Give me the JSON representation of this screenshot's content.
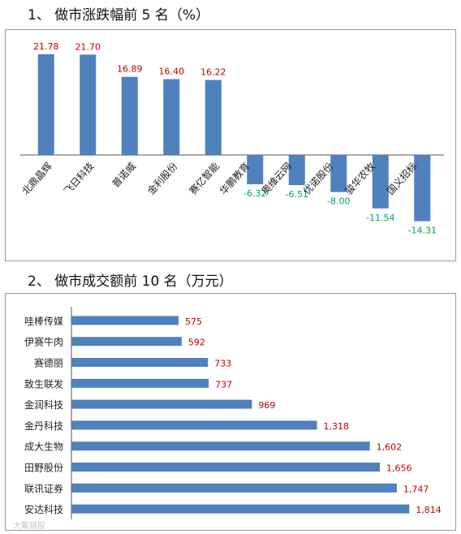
{
  "headings": {
    "chart1": "1、 做市涨跌幅前 5 名（%）",
    "chart2": "2、 做市成交额前 10 名（万元）"
  },
  "watermark": "大戴贼股",
  "colors": {
    "bar": "#4f81bd",
    "positive_label": "#c00000",
    "negative_label": "#00a651",
    "axis": "#555555"
  },
  "chart_data": [
    {
      "type": "bar",
      "title": "",
      "categories": [
        "北鼎晶辉",
        "飞日科技",
        "普诺威",
        "金利股份",
        "赛亿智能",
        "华鹏教育",
        "奥维云网",
        "优诺股份",
        "骏华农牧",
        "国义招标"
      ],
      "values": [
        21.78,
        21.7,
        16.89,
        16.4,
        16.22,
        -6.32,
        -6.51,
        -8.0,
        -11.54,
        -14.31
      ],
      "value_labels": [
        "21.78",
        "21.70",
        "16.89",
        "16.40",
        "16.22",
        "-6.32",
        "-6.51",
        "-8.00",
        "-11.54",
        "-14.31"
      ],
      "ylim": [
        -15,
        25
      ],
      "grid": false
    },
    {
      "type": "bar",
      "orientation": "horizontal",
      "title": "",
      "categories": [
        "哇棒传媒",
        "伊赛牛肉",
        "赛德丽",
        "致生联发",
        "金润科技",
        "金丹科技",
        "成大生物",
        "田野股份",
        "联讯证券",
        "安达科技"
      ],
      "values": [
        575,
        592,
        733,
        737,
        969,
        1318,
        1602,
        1656,
        1747,
        1814
      ],
      "value_labels": [
        "575",
        "592",
        "733",
        "737",
        "969",
        "1,318",
        "1,602",
        "1,656",
        "1,747",
        "1,814"
      ],
      "xlim": [
        0,
        1900
      ],
      "grid": false
    }
  ]
}
